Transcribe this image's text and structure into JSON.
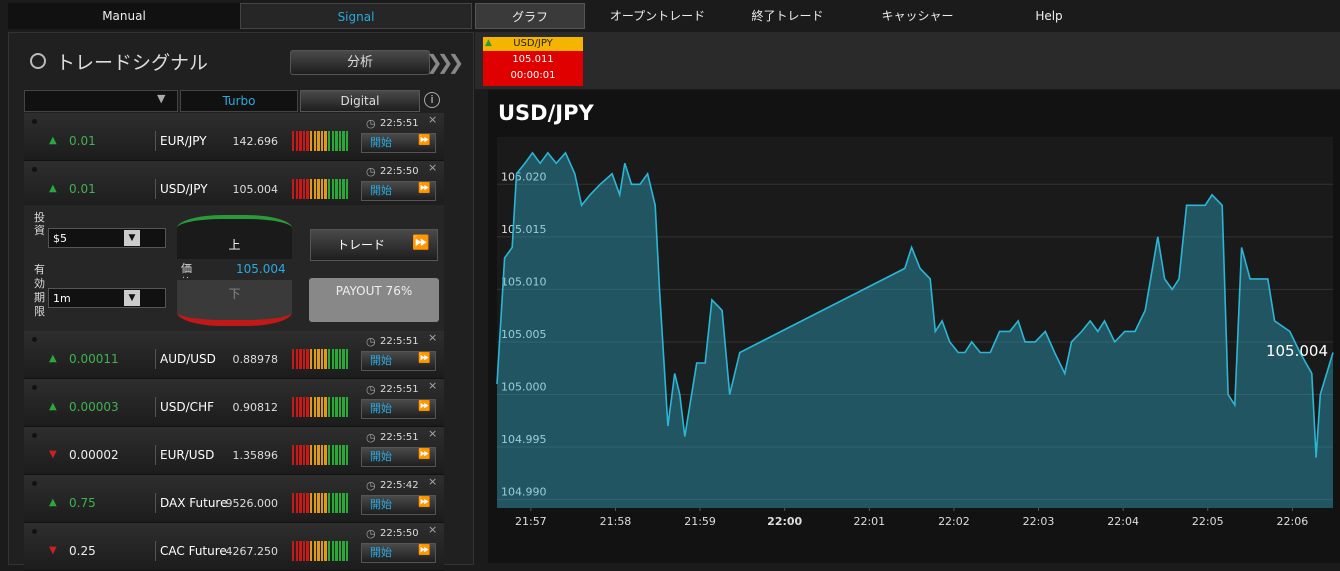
{
  "nav": {
    "left_tabs": [
      "Manual",
      "Signal"
    ],
    "right_tabs": [
      "グラフ",
      "オープントレード",
      "終了トレード",
      "キャッシャー",
      "Help"
    ]
  },
  "panel": {
    "title": "トレードシグナル",
    "analyze_button": "分析",
    "filters": [
      "Turbo",
      "Digital"
    ]
  },
  "signals": [
    {
      "direction": "up",
      "change": "0.01",
      "pair": "EUR/JPY",
      "price": "142.696",
      "time": "22:5:51",
      "button": "開始"
    },
    {
      "direction": "up",
      "change": "0.01",
      "pair": "USD/JPY",
      "price": "105.004",
      "time": "22:5:50",
      "button": "開始"
    },
    {
      "direction": "up",
      "change": "0.00011",
      "pair": "AUD/USD",
      "price": "0.88978",
      "time": "22:5:51",
      "button": "開始"
    },
    {
      "direction": "up",
      "change": "0.00003",
      "pair": "USD/CHF",
      "price": "0.90812",
      "time": "22:5:51",
      "button": "開始"
    },
    {
      "direction": "down",
      "change": "0.00002",
      "pair": "EUR/USD",
      "price": "1.35896",
      "time": "22:5:51",
      "button": "開始"
    },
    {
      "direction": "up",
      "change": "0.75",
      "pair": "DAX Future",
      "price": "9526.000",
      "time": "22:5:42",
      "button": "開始"
    },
    {
      "direction": "down",
      "change": "0.25",
      "pair": "CAC Future",
      "price": "4267.250",
      "time": "22:5:50",
      "button": "開始"
    }
  ],
  "trade": {
    "invest_label": "投資",
    "invest_value": "$5",
    "expiry_label": "有効期限",
    "expiry_value": "1m",
    "up": "上",
    "down": "下",
    "price_label": "価格",
    "price": "105.004",
    "trade_button": "トレード",
    "payout": "PAYOUT 76%"
  },
  "asset_tab": {
    "pair": "USD/JPY",
    "price": "105.011",
    "timer": "00:00:01"
  },
  "chart": {
    "type": "area",
    "title": "USD/JPY",
    "last_label": "105.004",
    "color": "#2cb6d6",
    "x": [
      -0.4,
      -0.31,
      -0.22,
      -0.17,
      -0.07,
      0.02,
      0.11,
      0.2,
      0.3,
      0.41,
      0.52,
      0.6,
      0.7,
      0.82,
      0.96,
      1.05,
      1.11,
      1.19,
      1.29,
      1.38,
      1.47,
      1.52,
      1.62,
      1.7,
      1.76,
      1.82,
      1.88,
      1.96,
      2.06,
      2.14,
      2.26,
      2.35,
      2.47,
      4.42,
      4.5,
      4.6,
      4.72,
      4.78,
      4.86,
      4.95,
      5.05,
      5.13,
      5.21,
      5.31,
      5.43,
      5.54,
      5.66,
      5.76,
      5.84,
      5.96,
      6.08,
      6.19,
      6.31,
      6.39,
      6.51,
      6.61,
      6.7,
      6.78,
      6.9,
      7.02,
      7.14,
      7.26,
      7.41,
      7.49,
      7.58,
      7.66,
      7.75,
      7.84,
      7.97,
      8.05,
      8.17,
      8.24,
      8.32,
      8.4,
      8.5,
      8.62,
      8.71,
      8.79,
      8.97,
      9.09,
      9.23,
      9.28,
      9.33,
      9.48
    ],
    "values": [
      105.001,
      105.013,
      105.014,
      105.021,
      105.022,
      105.023,
      105.022,
      105.023,
      105.022,
      105.023,
      105.021,
      105.018,
      105.019,
      105.02,
      105.021,
      105.019,
      105.022,
      105.02,
      105.02,
      105.021,
      105.018,
      105.01,
      104.997,
      105.002,
      105.0,
      104.996,
      104.999,
      105.003,
      105.003,
      105.009,
      105.008,
      105.0,
      105.004,
      105.012,
      105.014,
      105.012,
      105.011,
      105.006,
      105.007,
      105.005,
      105.004,
      105.004,
      105.005,
      105.004,
      105.004,
      105.006,
      105.006,
      105.007,
      105.005,
      105.005,
      105.006,
      105.004,
      105.002,
      105.005,
      105.006,
      105.007,
      105.006,
      105.007,
      105.005,
      105.006,
      105.006,
      105.008,
      105.015,
      105.011,
      105.01,
      105.011,
      105.018,
      105.018,
      105.018,
      105.019,
      105.018,
      105.0,
      104.999,
      105.014,
      105.011,
      105.011,
      105.011,
      105.007,
      105.006,
      105.004,
      105.002,
      104.994,
      105.0,
      105.004
    ],
    "xlim": [
      -0.4,
      9.48
    ],
    "xticks": [
      {
        "value": 0,
        "label": "21:57"
      },
      {
        "value": 1,
        "label": "21:58"
      },
      {
        "value": 2,
        "label": "21:59"
      },
      {
        "value": 3,
        "label": "22:00"
      },
      {
        "value": 4,
        "label": "22:01"
      },
      {
        "value": 5,
        "label": "22:02"
      },
      {
        "value": 6,
        "label": "22:03"
      },
      {
        "value": 7,
        "label": "22:04"
      },
      {
        "value": 8,
        "label": "22:05"
      },
      {
        "value": 9,
        "label": "22:06"
      }
    ],
    "bold_xtick": 3,
    "ylim": [
      104.9892,
      105.0245
    ],
    "yticks": [
      {
        "value": 104.99,
        "label": "104.990"
      },
      104.995,
      {
        "value": 105,
        "label": "105.000"
      },
      105.005,
      {
        "value": 105.01,
        "label": "105.010"
      },
      105.015,
      {
        "value": 105.02,
        "label": "105.020"
      }
    ],
    "grid": true
  }
}
